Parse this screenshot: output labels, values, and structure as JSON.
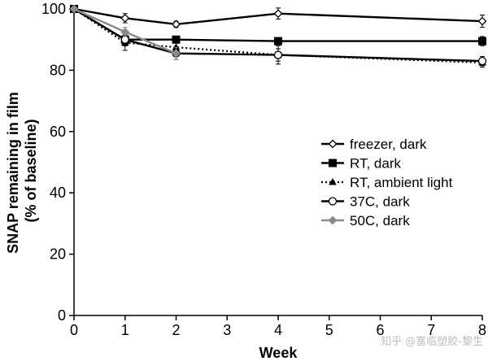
{
  "chart_data": {
    "type": "line",
    "xlabel": "Week",
    "ylabel_lines": [
      "SNAP remaining in film",
      "(% of baseline)"
    ],
    "xlim": [
      0,
      8
    ],
    "ylim": [
      0,
      100
    ],
    "xticks": [
      0,
      1,
      2,
      3,
      4,
      5,
      6,
      7,
      8
    ],
    "yticks": [
      0,
      20,
      40,
      60,
      80,
      100
    ],
    "grid": false,
    "legend_position": "right",
    "series": [
      {
        "name": "freezer, dark",
        "color": "#000000",
        "line": "solid",
        "marker": "diamond-open",
        "x": [
          0,
          1,
          2,
          4,
          8
        ],
        "y": [
          100,
          97,
          95,
          98.5,
          96
        ],
        "err": [
          0,
          1.5,
          1,
          1.8,
          2
        ]
      },
      {
        "name": "RT, dark",
        "color": "#000000",
        "line": "solid",
        "marker": "square-filled",
        "x": [
          0,
          1,
          2,
          4,
          8
        ],
        "y": [
          100,
          90,
          90,
          89.5,
          89.5
        ],
        "err": [
          0,
          2,
          1,
          1,
          1.5
        ]
      },
      {
        "name": "RT, ambient light",
        "color": "#000000",
        "line": "dotted",
        "marker": "triangle-filled",
        "x": [
          0,
          1,
          2,
          4,
          8
        ],
        "y": [
          100,
          89,
          87.5,
          85,
          82.5
        ],
        "err": [
          0,
          2.5,
          1.5,
          2,
          1.5
        ]
      },
      {
        "name": "37C, dark",
        "color": "#000000",
        "line": "solid",
        "marker": "circle-open",
        "x": [
          0,
          1,
          2,
          4,
          8
        ],
        "y": [
          100,
          90,
          85.5,
          85,
          83
        ],
        "err": [
          0,
          2,
          2,
          3,
          1.5
        ]
      },
      {
        "name": "50C, dark",
        "color": "#8a8a8a",
        "line": "solid",
        "marker": "diamond-filled",
        "x": [
          0,
          1,
          2
        ],
        "y": [
          100,
          92.5,
          85.5
        ],
        "err": [
          0,
          1.5,
          2
        ]
      }
    ]
  },
  "watermark": "知乎 @富临塑胶-黎生"
}
